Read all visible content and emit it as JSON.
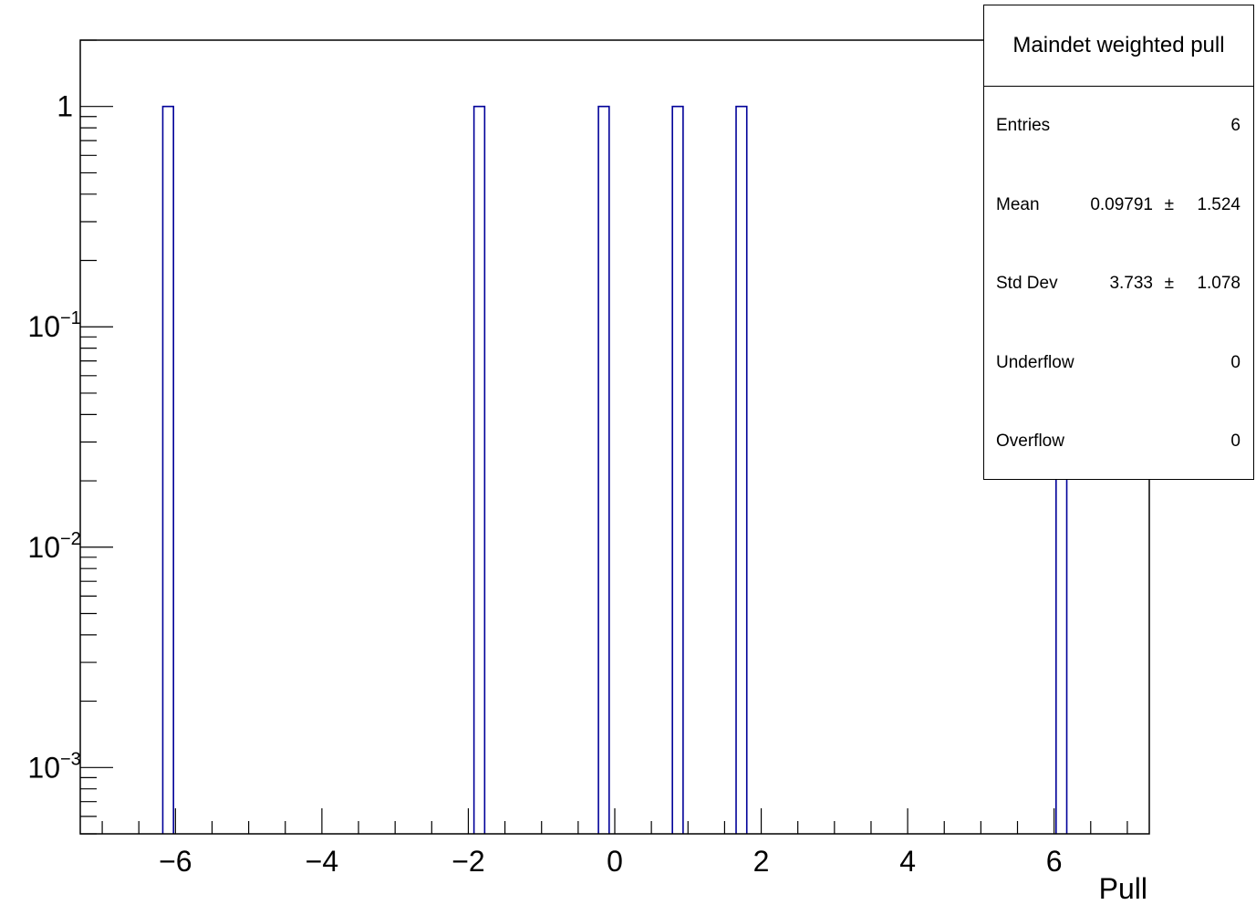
{
  "chart_data": {
    "type": "bar",
    "title": "",
    "xlabel": "Pull",
    "ylabel": "",
    "y_scale": "log",
    "xlim": [
      -7.3,
      7.3
    ],
    "ylim": [
      0.0005,
      2.0
    ],
    "x_ticks": [
      -6,
      -4,
      -2,
      0,
      2,
      4,
      6
    ],
    "x_tick_labels": [
      "−6",
      "−4",
      "−2",
      "0",
      "2",
      "4",
      "6"
    ],
    "y_ticks": [
      1,
      0.1,
      0.01,
      0.001
    ],
    "y_tick_labels": [
      {
        "base": "1",
        "exp": ""
      },
      {
        "base": "10",
        "exp": "−1"
      },
      {
        "base": "10",
        "exp": "−2"
      },
      {
        "base": "10",
        "exp": "−3"
      }
    ],
    "bin_width": 0.146,
    "bins": [
      {
        "center": -6.1,
        "value": 1
      },
      {
        "center": -1.85,
        "value": 1
      },
      {
        "center": -0.15,
        "value": 1
      },
      {
        "center": 0.86,
        "value": 1
      },
      {
        "center": 1.73,
        "value": 1
      },
      {
        "center": 6.1,
        "value": 1
      }
    ],
    "line_color": "#000099"
  },
  "stats": {
    "title": "Maindet weighted pull",
    "entries_label": "Entries",
    "entries_value": "6",
    "mean_label": "Mean",
    "mean_value": "0.09791",
    "mean_pm": "±",
    "mean_err": "1.524",
    "std_label": "Std Dev",
    "std_value": "3.733",
    "std_pm": "±",
    "std_err": "1.078",
    "underflow_label": "Underflow",
    "underflow_value": "0",
    "overflow_label": "Overflow",
    "overflow_value": "0"
  }
}
